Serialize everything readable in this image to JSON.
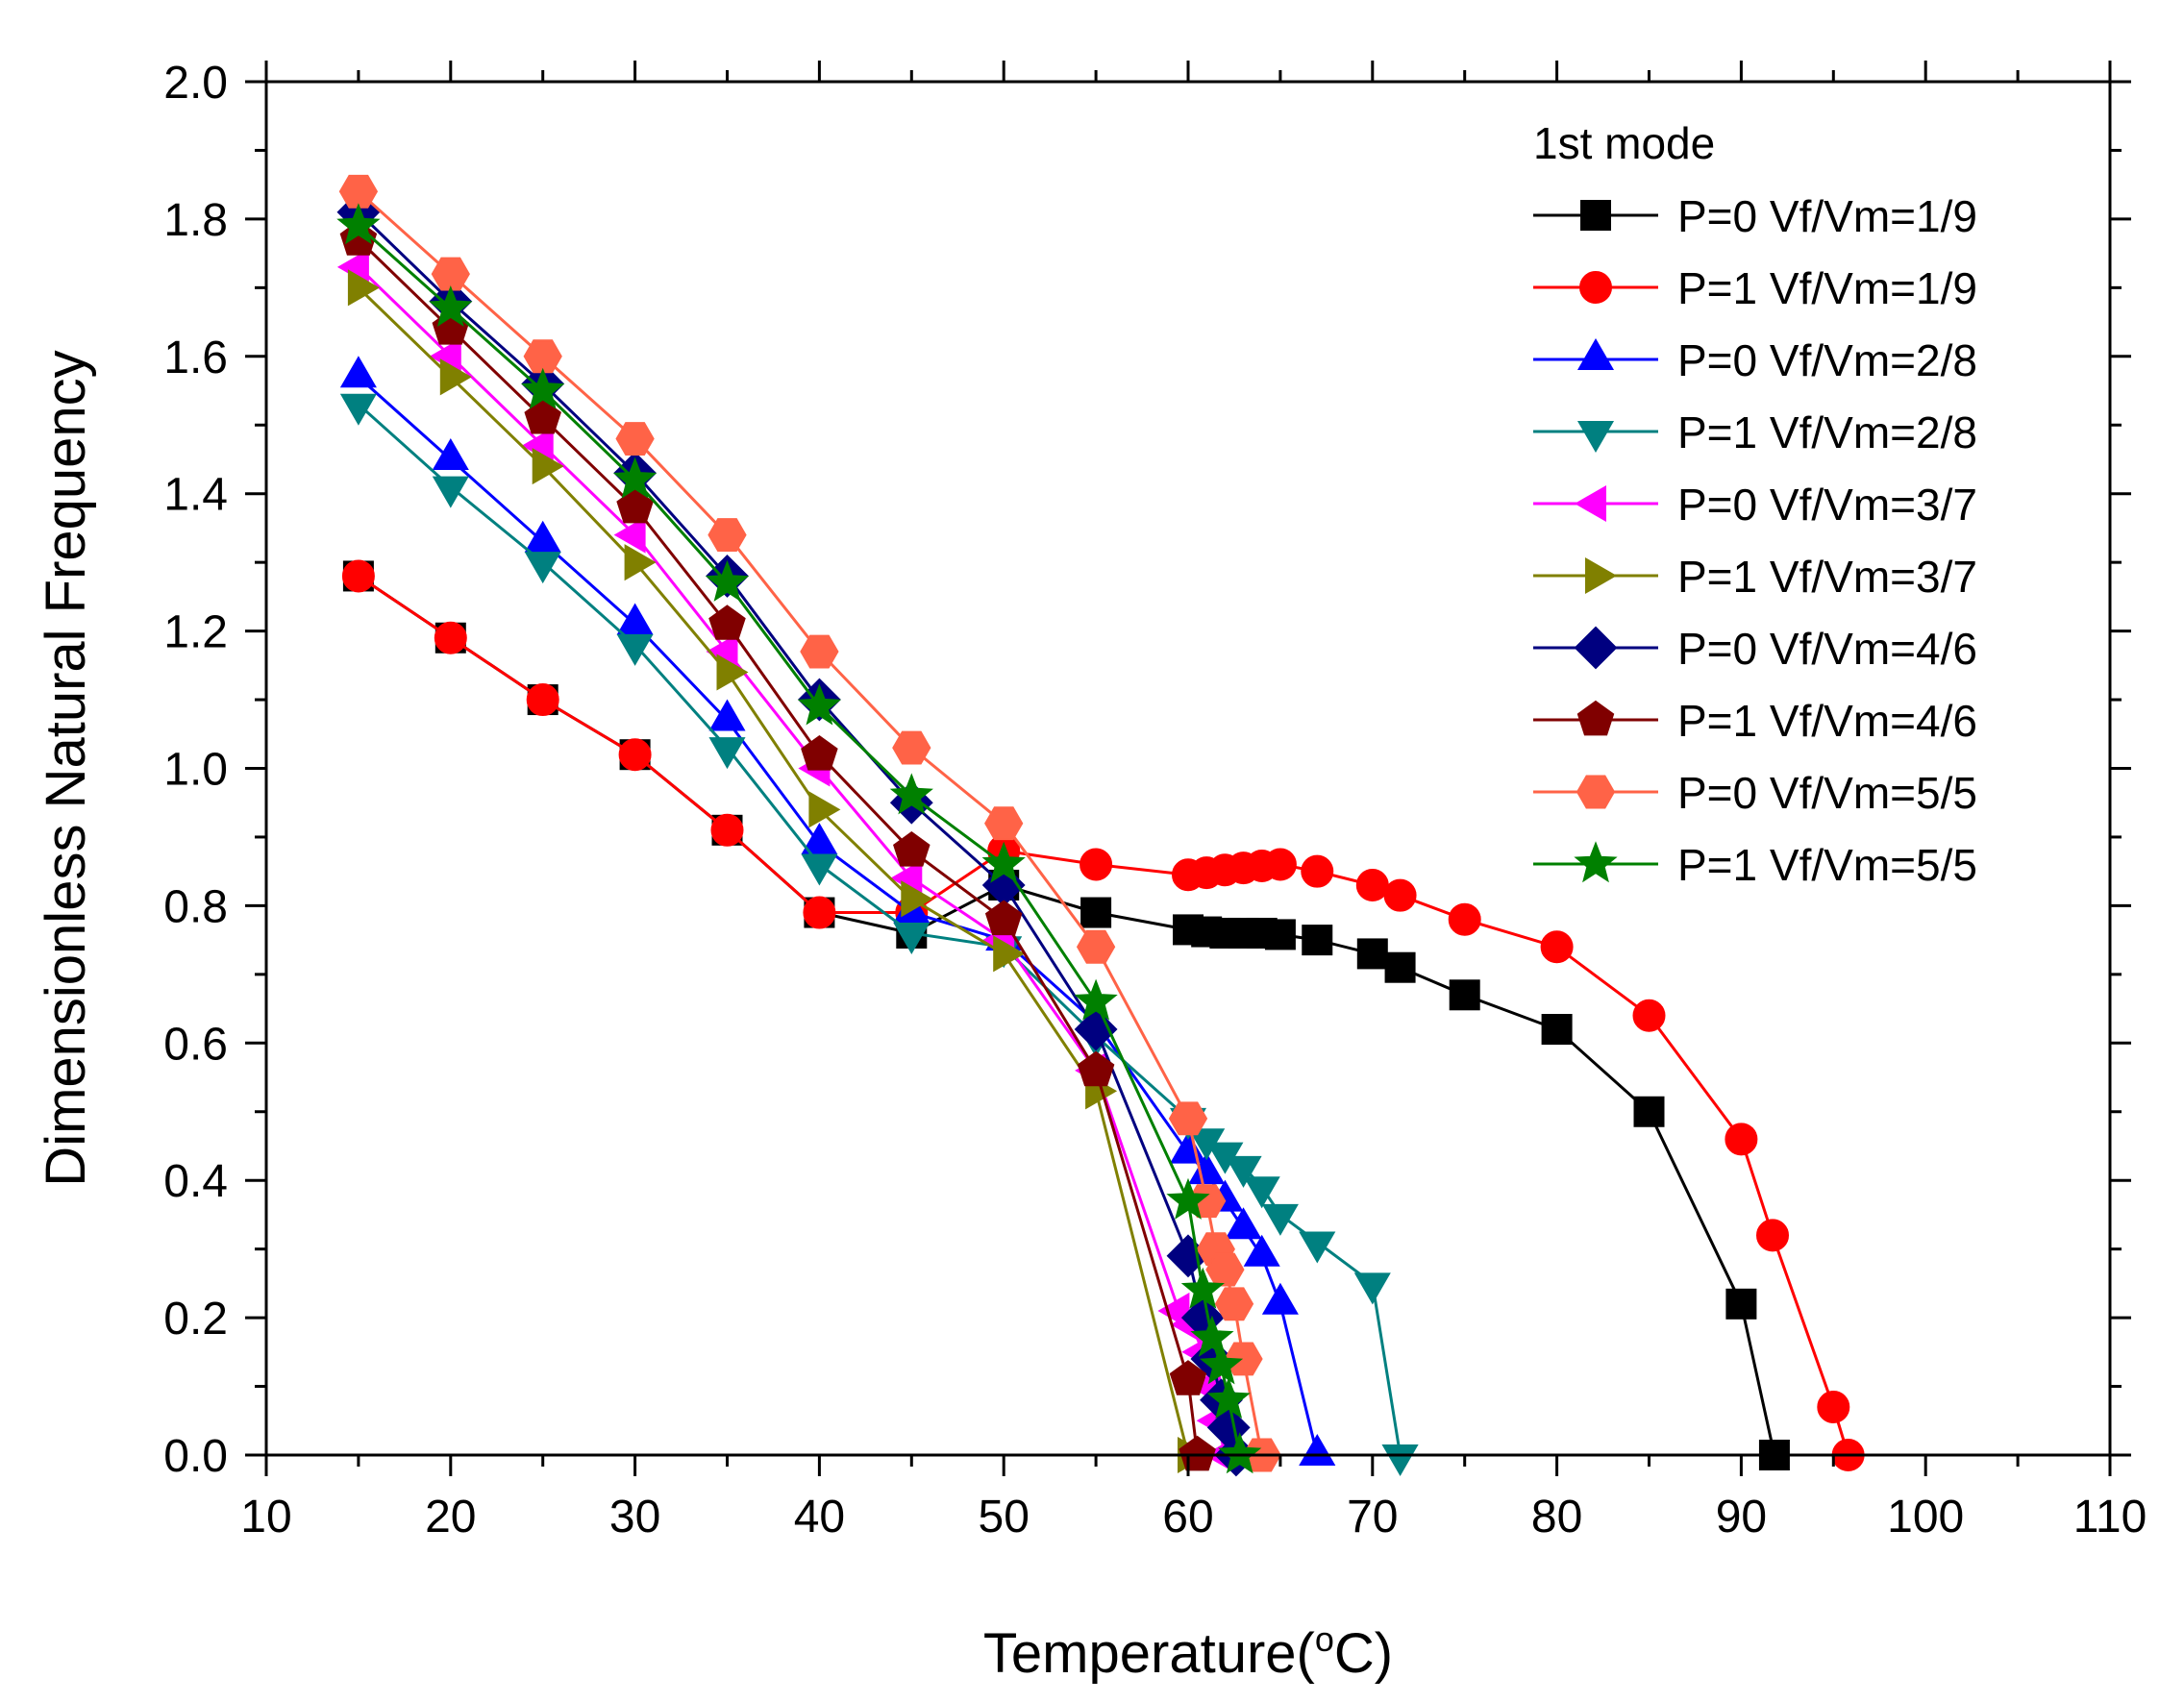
{
  "chart_data": {
    "type": "line",
    "xlabel": "Temperature(",
    "xlabel_unit_sup": "o",
    "xlabel_unit": "C)",
    "ylabel": "Dimensionless Natural Frequency",
    "xlim": [
      10,
      110
    ],
    "ylim": [
      0,
      2.0
    ],
    "xticks": [
      "10",
      "20",
      "30",
      "40",
      "50",
      "60",
      "70",
      "80",
      "90",
      "100",
      "110"
    ],
    "yticks": [
      "0.0",
      "0.2",
      "0.4",
      "0.6",
      "0.8",
      "1.0",
      "1.2",
      "1.4",
      "1.6",
      "1.8",
      "2.0"
    ],
    "grid": false,
    "legend_title": "1st mode",
    "legend_position": "top-right",
    "series": [
      {
        "name": "P=0 Vf/Vm=1/9",
        "color": "#000000",
        "marker": "square",
        "points": [
          [
            15,
            1.28
          ],
          [
            20,
            1.19
          ],
          [
            25,
            1.1
          ],
          [
            30,
            1.02
          ],
          [
            35,
            0.91
          ],
          [
            40,
            0.79
          ],
          [
            45,
            0.76
          ],
          [
            50,
            0.83
          ],
          [
            55,
            0.79
          ],
          [
            60,
            0.765
          ],
          [
            61,
            0.762
          ],
          [
            62,
            0.76
          ],
          [
            63,
            0.76
          ],
          [
            64,
            0.76
          ],
          [
            65,
            0.758
          ],
          [
            67,
            0.75
          ],
          [
            70,
            0.73
          ],
          [
            71.5,
            0.71
          ],
          [
            75,
            0.67
          ],
          [
            80,
            0.62
          ],
          [
            85,
            0.5
          ],
          [
            90,
            0.22
          ],
          [
            91.8,
            0.0
          ]
        ]
      },
      {
        "name": "P=1 Vf/Vm=1/9",
        "color": "#ff0000",
        "marker": "circle",
        "points": [
          [
            15,
            1.28
          ],
          [
            20,
            1.19
          ],
          [
            25,
            1.1
          ],
          [
            30,
            1.02
          ],
          [
            35,
            0.91
          ],
          [
            40,
            0.79
          ],
          [
            45,
            0.79
          ],
          [
            50,
            0.88
          ],
          [
            55,
            0.86
          ],
          [
            60,
            0.845
          ],
          [
            61,
            0.848
          ],
          [
            62,
            0.852
          ],
          [
            63,
            0.855
          ],
          [
            64,
            0.858
          ],
          [
            65,
            0.86
          ],
          [
            67,
            0.85
          ],
          [
            70,
            0.83
          ],
          [
            71.5,
            0.815
          ],
          [
            75,
            0.78
          ],
          [
            80,
            0.74
          ],
          [
            85,
            0.64
          ],
          [
            90,
            0.46
          ],
          [
            91.7,
            0.32
          ],
          [
            95,
            0.07
          ],
          [
            95.8,
            0.0
          ]
        ]
      },
      {
        "name": "P=0 Vf/Vm=2/8",
        "color": "#0000ff",
        "marker": "triangle-up",
        "points": [
          [
            15,
            1.57
          ],
          [
            20,
            1.45
          ],
          [
            25,
            1.33
          ],
          [
            30,
            1.21
          ],
          [
            35,
            1.07
          ],
          [
            40,
            0.89
          ],
          [
            45,
            0.79
          ],
          [
            50,
            0.75
          ],
          [
            55,
            0.63
          ],
          [
            60,
            0.44
          ],
          [
            61,
            0.41
          ],
          [
            62,
            0.37
          ],
          [
            63,
            0.33
          ],
          [
            64,
            0.29
          ],
          [
            65,
            0.22
          ],
          [
            67,
            0.0
          ]
        ]
      },
      {
        "name": "P=1 Vf/Vm=2/8",
        "color": "#008080",
        "marker": "triangle-down",
        "points": [
          [
            15,
            1.53
          ],
          [
            20,
            1.41
          ],
          [
            25,
            1.3
          ],
          [
            30,
            1.18
          ],
          [
            35,
            1.03
          ],
          [
            40,
            0.86
          ],
          [
            45,
            0.76
          ],
          [
            50,
            0.74
          ],
          [
            55,
            0.61
          ],
          [
            60,
            0.49
          ],
          [
            61,
            0.46
          ],
          [
            62,
            0.44
          ],
          [
            63,
            0.42
          ],
          [
            64,
            0.39
          ],
          [
            65,
            0.35
          ],
          [
            67,
            0.31
          ],
          [
            70,
            0.25
          ],
          [
            71.5,
            0.0
          ]
        ]
      },
      {
        "name": "P=0 Vf/Vm=3/7",
        "color": "#ff00ff",
        "marker": "triangle-left",
        "points": [
          [
            15,
            1.73
          ],
          [
            20,
            1.6
          ],
          [
            25,
            1.47
          ],
          [
            30,
            1.34
          ],
          [
            35,
            1.17
          ],
          [
            40,
            1.0
          ],
          [
            45,
            0.84
          ],
          [
            50,
            0.75
          ],
          [
            55,
            0.56
          ],
          [
            59.5,
            0.21
          ],
          [
            60.2,
            0.19
          ],
          [
            60.8,
            0.15
          ],
          [
            61.2,
            0.1
          ],
          [
            61.6,
            0.05
          ],
          [
            62,
            0.0
          ]
        ]
      },
      {
        "name": "P=1 Vf/Vm=3/7",
        "color": "#808000",
        "marker": "triangle-right",
        "points": [
          [
            15,
            1.7
          ],
          [
            20,
            1.57
          ],
          [
            25,
            1.44
          ],
          [
            30,
            1.3
          ],
          [
            35,
            1.14
          ],
          [
            40,
            0.94
          ],
          [
            45,
            0.81
          ],
          [
            50,
            0.73
          ],
          [
            55,
            0.53
          ],
          [
            60,
            0.0
          ]
        ]
      },
      {
        "name": "P=0 Vf/Vm=4/6",
        "color": "#000080",
        "marker": "diamond",
        "points": [
          [
            15,
            1.81
          ],
          [
            20,
            1.68
          ],
          [
            25,
            1.56
          ],
          [
            30,
            1.43
          ],
          [
            35,
            1.28
          ],
          [
            40,
            1.1
          ],
          [
            45,
            0.95
          ],
          [
            50,
            0.83
          ],
          [
            55,
            0.62
          ],
          [
            60,
            0.29
          ],
          [
            60.8,
            0.2
          ],
          [
            61.3,
            0.14
          ],
          [
            61.8,
            0.08
          ],
          [
            62.2,
            0.04
          ],
          [
            62.6,
            0.0
          ]
        ]
      },
      {
        "name": "P=1 Vf/Vm=4/6",
        "color": "#800000",
        "marker": "pentagon",
        "points": [
          [
            15,
            1.77
          ],
          [
            20,
            1.64
          ],
          [
            25,
            1.51
          ],
          [
            30,
            1.38
          ],
          [
            35,
            1.21
          ],
          [
            40,
            1.02
          ],
          [
            45,
            0.88
          ],
          [
            50,
            0.78
          ],
          [
            55,
            0.56
          ],
          [
            60,
            0.11
          ],
          [
            60.5,
            0.0
          ]
        ]
      },
      {
        "name": "P=0 Vf/Vm=5/5",
        "color": "#ff6347",
        "marker": "hexagon",
        "points": [
          [
            15,
            1.84
          ],
          [
            20,
            1.72
          ],
          [
            25,
            1.6
          ],
          [
            30,
            1.48
          ],
          [
            35,
            1.34
          ],
          [
            40,
            1.17
          ],
          [
            45,
            1.03
          ],
          [
            50,
            0.92
          ],
          [
            55,
            0.74
          ],
          [
            60,
            0.49
          ],
          [
            61,
            0.37
          ],
          [
            61.5,
            0.3
          ],
          [
            62,
            0.27
          ],
          [
            62.5,
            0.22
          ],
          [
            63,
            0.14
          ],
          [
            64,
            0.0
          ]
        ]
      },
      {
        "name": "P=1 Vf/Vm=5/5",
        "color": "#008000",
        "marker": "star",
        "points": [
          [
            15,
            1.79
          ],
          [
            20,
            1.67
          ],
          [
            25,
            1.55
          ],
          [
            30,
            1.42
          ],
          [
            35,
            1.27
          ],
          [
            40,
            1.09
          ],
          [
            45,
            0.96
          ],
          [
            50,
            0.86
          ],
          [
            55,
            0.66
          ],
          [
            60,
            0.37
          ],
          [
            60.8,
            0.24
          ],
          [
            61.3,
            0.17
          ],
          [
            61.8,
            0.13
          ],
          [
            62.2,
            0.08
          ],
          [
            62.8,
            0.0
          ]
        ]
      }
    ]
  }
}
